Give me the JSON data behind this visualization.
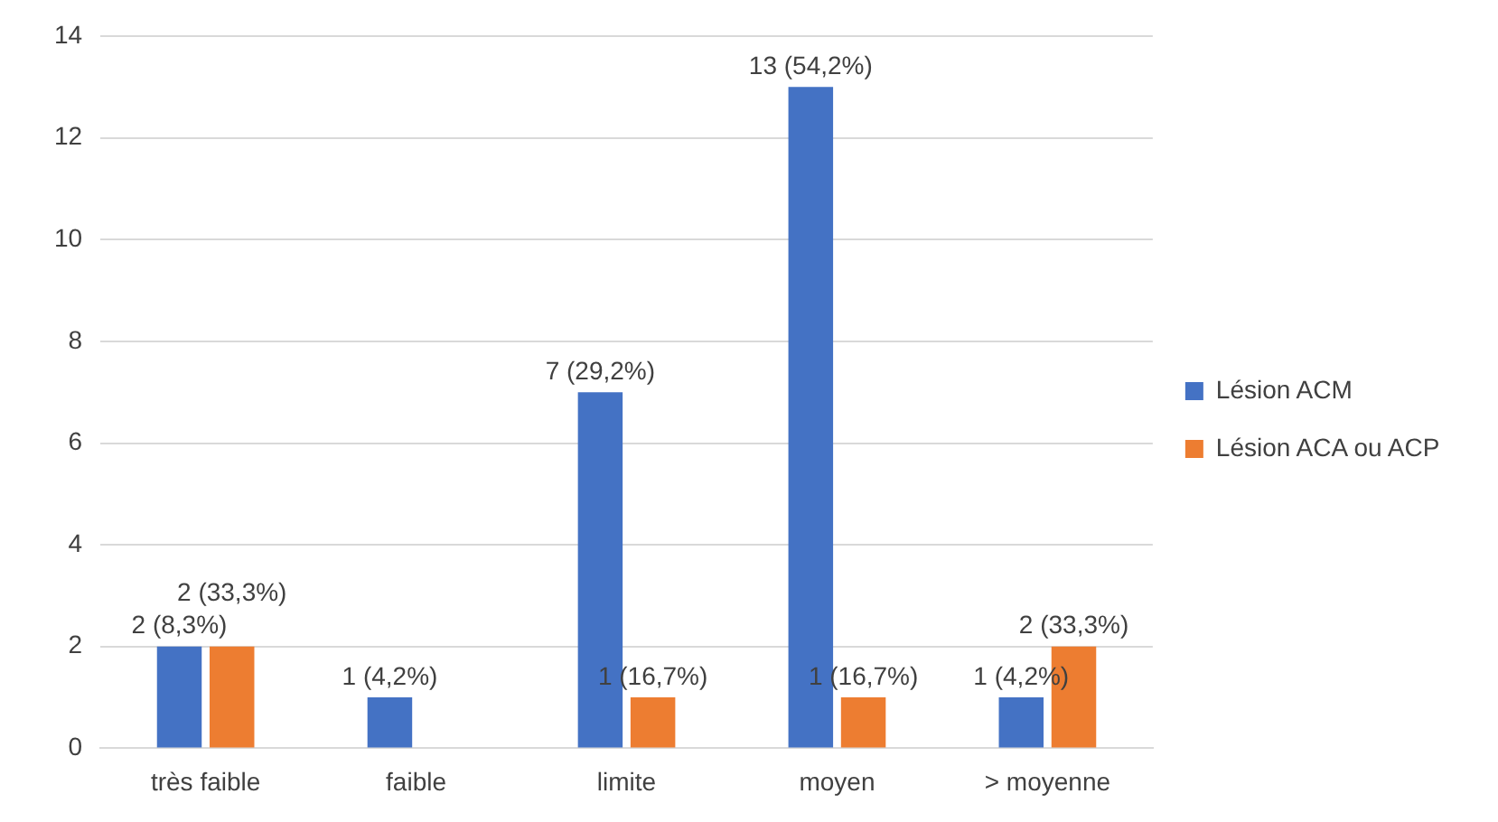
{
  "chart_data": {
    "type": "bar",
    "categories": [
      "très faible",
      "faible",
      "limite",
      "moyen",
      "> moyenne"
    ],
    "series": [
      {
        "name": "Lésion ACM",
        "color": "#4472c4",
        "values": [
          2,
          1,
          7,
          13,
          1
        ],
        "value_labels": [
          "2 (8,3%)",
          "1 (4,2%)",
          "7 (29,2%)",
          "13 (54,2%)",
          "1 (4,2%)"
        ]
      },
      {
        "name": "Lésion ACA ou ACP",
        "color": "#ed7d31",
        "values": [
          2,
          null,
          1,
          1,
          2
        ],
        "value_labels": [
          "2 (33,3%)",
          null,
          "1 (16,7%)",
          "1 (16,7%)",
          "2 (33,3%)"
        ]
      }
    ],
    "ylim": [
      0,
      14
    ],
    "yticks": [
      0,
      2,
      4,
      6,
      8,
      10,
      12,
      14
    ],
    "grid": "y",
    "legend": "right"
  }
}
